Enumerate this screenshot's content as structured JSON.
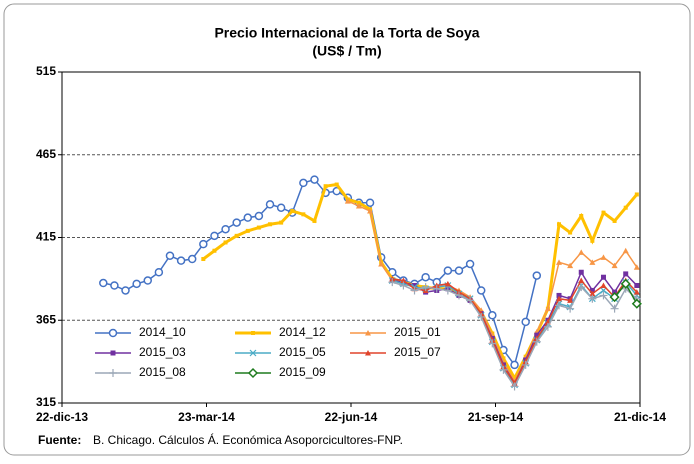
{
  "chart_data": {
    "type": "line",
    "title": "Precio Internacional de la Torta de Soya",
    "subtitle": "(US$ / Tm)",
    "source_label": "Fuente:",
    "source": "B. Chicago. Cálculos Á. Económica Asoporcicultores-FNP.",
    "x": [
      "2014-01-17",
      "2014-01-24",
      "2014-01-31",
      "2014-02-07",
      "2014-02-14",
      "2014-02-21",
      "2014-02-28",
      "2014-03-07",
      "2014-03-14",
      "2014-03-21",
      "2014-03-28",
      "2014-04-04",
      "2014-04-11",
      "2014-04-18",
      "2014-04-25",
      "2014-05-02",
      "2014-05-09",
      "2014-05-16",
      "2014-05-23",
      "2014-05-30",
      "2014-06-06",
      "2014-06-13",
      "2014-06-20",
      "2014-06-27",
      "2014-07-04",
      "2014-07-11",
      "2014-07-18",
      "2014-07-25",
      "2014-08-01",
      "2014-08-08",
      "2014-08-15",
      "2014-08-22",
      "2014-08-29",
      "2014-09-05",
      "2014-09-12",
      "2014-09-19",
      "2014-09-26",
      "2014-10-03",
      "2014-10-10",
      "2014-10-17",
      "2014-10-24",
      "2014-10-31",
      "2014-11-07",
      "2014-11-14",
      "2014-11-21",
      "2014-11-28",
      "2014-12-05",
      "2014-12-12",
      "2014-12-19"
    ],
    "xlim": [
      "2013-12-22",
      "2014-12-21"
    ],
    "xticks": [
      {
        "value": "2013-12-22",
        "label": "22-dic-13"
      },
      {
        "value": "2014-03-23",
        "label": "23-mar-14"
      },
      {
        "value": "2014-06-22",
        "label": "22-jun-14"
      },
      {
        "value": "2014-09-21",
        "label": "21-sep-14"
      },
      {
        "value": "2014-12-21",
        "label": "21-dic-14"
      }
    ],
    "ylim": [
      315,
      515
    ],
    "yticks": [
      315,
      365,
      415,
      465,
      515
    ],
    "grid": true,
    "legend": "lower-left",
    "series": [
      {
        "name": "2014_10",
        "color": "#4472c4",
        "marker": "circle",
        "values": [
          387.5,
          386,
          383,
          387,
          389,
          394,
          404,
          401,
          402,
          411,
          416,
          420,
          424,
          427,
          428,
          435,
          433,
          430,
          448,
          450,
          442,
          443,
          439,
          436,
          436,
          403,
          394,
          389,
          387,
          391,
          388,
          395,
          395,
          399,
          383,
          368,
          347,
          338,
          364,
          392,
          null,
          null,
          null,
          null,
          null,
          null,
          null,
          null,
          null
        ]
      },
      {
        "name": "2014_12",
        "color": "#ffc000",
        "marker": "square-small",
        "values": [
          null,
          null,
          null,
          null,
          null,
          null,
          null,
          null,
          null,
          402,
          407,
          412,
          416,
          419,
          421,
          423,
          424,
          431,
          429,
          425,
          446,
          447,
          438,
          436,
          432,
          400,
          390,
          388,
          386,
          385,
          384,
          384,
          382,
          378,
          370,
          357,
          342,
          330,
          343,
          357,
          372,
          423,
          418,
          428,
          413,
          430,
          425,
          433,
          441
        ]
      },
      {
        "name": "2015_01",
        "color": "#f79646",
        "marker": "triangle",
        "values": [
          null,
          null,
          null,
          null,
          null,
          null,
          null,
          null,
          null,
          null,
          null,
          null,
          null,
          null,
          null,
          null,
          null,
          null,
          null,
          null,
          null,
          null,
          437,
          434,
          431,
          399,
          389,
          387,
          385,
          384,
          385,
          386,
          383,
          379,
          371,
          356,
          340,
          328,
          342,
          358,
          372,
          400,
          398,
          406,
          400,
          403,
          398,
          407,
          397
        ]
      },
      {
        "name": "2015_03",
        "color": "#7030a0",
        "marker": "square",
        "values": [
          null,
          null,
          null,
          null,
          null,
          null,
          null,
          null,
          null,
          null,
          null,
          null,
          null,
          null,
          null,
          null,
          null,
          null,
          null,
          null,
          null,
          null,
          null,
          null,
          null,
          null,
          389,
          388,
          386,
          382,
          383,
          384,
          380,
          377,
          369,
          354,
          338,
          327,
          341,
          356,
          365,
          380,
          378,
          394,
          383,
          391,
          382,
          393,
          386
        ]
      },
      {
        "name": "2015_05",
        "color": "#4bacc6",
        "marker": "x",
        "values": [
          null,
          null,
          null,
          null,
          null,
          null,
          null,
          null,
          null,
          null,
          null,
          null,
          null,
          null,
          null,
          null,
          null,
          null,
          null,
          null,
          null,
          null,
          null,
          null,
          null,
          null,
          389,
          387,
          385,
          384,
          385,
          386,
          381,
          378,
          368,
          352,
          336,
          326,
          339,
          353,
          363,
          375,
          373,
          386,
          378,
          383,
          378,
          388,
          380
        ]
      },
      {
        "name": "2015_07",
        "color": "#e0442b",
        "marker": "triangle",
        "values": [
          null,
          null,
          null,
          null,
          null,
          null,
          null,
          null,
          null,
          null,
          null,
          null,
          null,
          null,
          null,
          null,
          null,
          null,
          null,
          null,
          null,
          null,
          null,
          null,
          null,
          null,
          390,
          389,
          384,
          383,
          386,
          387,
          382,
          378,
          369,
          353,
          337,
          327,
          340,
          354,
          364,
          378,
          377,
          389,
          381,
          386,
          379,
          389,
          382
        ]
      },
      {
        "name": "2015_08",
        "color": "#9ba7b7",
        "marker": "plus",
        "values": [
          null,
          null,
          null,
          null,
          null,
          null,
          null,
          null,
          null,
          null,
          null,
          null,
          null,
          null,
          null,
          null,
          null,
          null,
          null,
          null,
          null,
          null,
          null,
          null,
          null,
          null,
          388,
          386,
          383,
          385,
          384,
          383,
          380,
          377,
          367,
          351,
          335,
          325,
          338,
          352,
          361,
          374,
          372,
          385,
          378,
          380,
          372,
          384,
          378
        ]
      },
      {
        "name": "2015_09",
        "color": "#1e7b1e",
        "marker": "diamond",
        "values": [
          null,
          null,
          null,
          null,
          null,
          null,
          null,
          null,
          null,
          null,
          null,
          null,
          null,
          null,
          null,
          null,
          null,
          null,
          null,
          null,
          null,
          null,
          null,
          null,
          null,
          null,
          null,
          null,
          null,
          null,
          null,
          null,
          null,
          null,
          null,
          null,
          null,
          null,
          null,
          null,
          null,
          null,
          null,
          null,
          null,
          null,
          379,
          387,
          375
        ]
      }
    ]
  }
}
